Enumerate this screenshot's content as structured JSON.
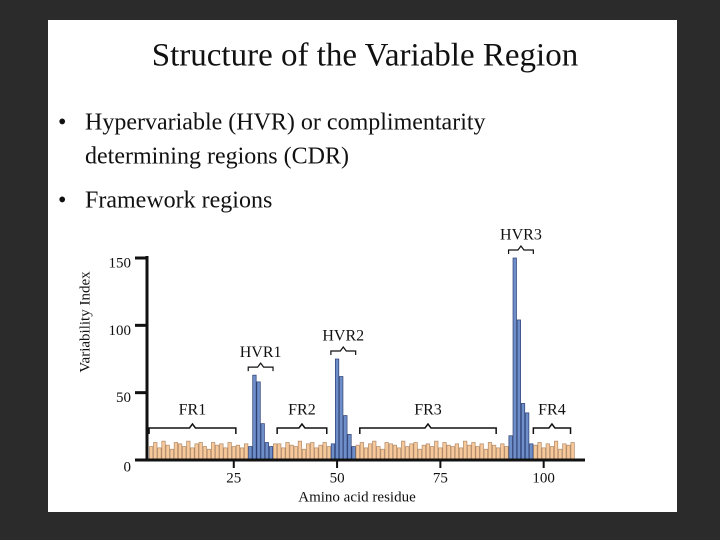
{
  "slide": {
    "title": "Structure of the Variable Region",
    "bullets": [
      [
        "Hypervariable (HVR) or complimentarity",
        "determining regions (CDR)"
      ],
      [
        "Framework regions"
      ]
    ]
  },
  "chart_data": {
    "type": "bar",
    "x_label": "Amino acid residue",
    "y_label": "Variability Index",
    "x": [
      5,
      6,
      7,
      8,
      9,
      10,
      11,
      12,
      13,
      14,
      15,
      16,
      17,
      18,
      19,
      20,
      21,
      22,
      23,
      24,
      25,
      26,
      27,
      28,
      29,
      30,
      31,
      32,
      33,
      34,
      35,
      36,
      37,
      38,
      39,
      40,
      41,
      42,
      43,
      44,
      45,
      46,
      47,
      48,
      49,
      50,
      51,
      52,
      53,
      54,
      55,
      56,
      57,
      58,
      59,
      60,
      61,
      62,
      63,
      64,
      65,
      66,
      67,
      68,
      69,
      70,
      71,
      72,
      73,
      74,
      75,
      76,
      77,
      78,
      79,
      80,
      81,
      82,
      83,
      84,
      85,
      86,
      87,
      88,
      89,
      90,
      91,
      92,
      93,
      94,
      95,
      96,
      97,
      98,
      99,
      100,
      101,
      102,
      103,
      104,
      105,
      106,
      107
    ],
    "values": [
      10,
      13,
      9,
      14,
      11,
      8,
      13,
      12,
      10,
      14,
      9,
      12,
      13,
      10,
      8,
      13,
      11,
      12,
      9,
      13,
      10,
      11,
      9,
      12,
      10,
      63,
      58,
      27,
      13,
      10,
      12,
      12,
      9,
      13,
      11,
      10,
      14,
      8,
      12,
      13,
      9,
      11,
      13,
      10,
      12,
      75,
      62,
      33,
      19,
      10,
      11,
      13,
      9,
      12,
      14,
      10,
      8,
      13,
      12,
      11,
      9,
      14,
      10,
      12,
      13,
      8,
      11,
      12,
      10,
      14,
      9,
      13,
      11,
      10,
      12,
      9,
      14,
      11,
      13,
      10,
      12,
      8,
      13,
      11,
      9,
      12,
      10,
      18,
      150,
      104,
      42,
      35,
      12,
      11,
      13,
      9,
      12,
      10,
      14,
      8,
      12,
      11,
      13
    ],
    "regions": [
      {
        "label": "FR1",
        "range": [
          5,
          25
        ],
        "color": "#f7c89a"
      },
      {
        "label": "HVR1",
        "range": [
          29,
          34
        ],
        "color": "#6e8ec9"
      },
      {
        "label": "FR2",
        "range": [
          36,
          47
        ],
        "color": "#f7c89a"
      },
      {
        "label": "HVR2",
        "range": [
          49,
          54
        ],
        "color": "#6e8ec9"
      },
      {
        "label": "FR3",
        "range": [
          56,
          88
        ],
        "color": "#f7c89a"
      },
      {
        "label": "HVR3",
        "range": [
          92,
          97
        ],
        "color": "#6e8ec9"
      },
      {
        "label": "FR4",
        "range": [
          98,
          106
        ],
        "color": "#f7c89a"
      }
    ],
    "xlim": [
      4,
      110
    ],
    "ylim": [
      0,
      150
    ],
    "xticks": [
      25,
      50,
      75,
      100
    ],
    "yticks": [
      0,
      50,
      100,
      150
    ]
  }
}
